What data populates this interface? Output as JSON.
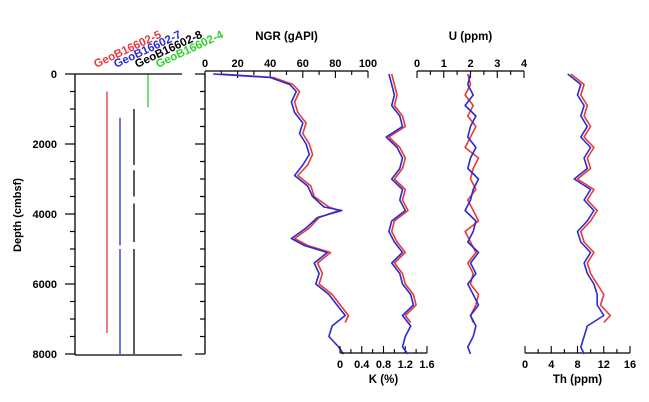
{
  "chart_data": {
    "type": "line",
    "depth_axis": {
      "label": "Depth (cmbsf)",
      "range": [
        0,
        8000
      ],
      "ticks": [
        "0",
        "2000",
        "4000",
        "6000",
        "8000"
      ],
      "direction": "down"
    },
    "holes": [
      {
        "name": "GeoB16602-5",
        "color": "#e8383a",
        "segments": [
          [
            500,
            7400
          ]
        ]
      },
      {
        "name": "GeoB16602-7",
        "color": "#2b2bd0",
        "segments": [
          [
            1250,
            4900
          ],
          [
            5000,
            8000
          ]
        ]
      },
      {
        "name": "GeoB16602-8",
        "color": "#000000",
        "segments": [
          [
            1000,
            2600
          ],
          [
            2750,
            3500
          ],
          [
            3700,
            4800
          ],
          [
            5000,
            8000
          ]
        ]
      },
      {
        "name": "GeoB16602-4",
        "color": "#2ed12e",
        "segments": [
          [
            0,
            950
          ]
        ]
      }
    ],
    "panels": [
      {
        "id": "ngr",
        "label": "NGR (gAPI)",
        "axis_position": "top",
        "xlim": [
          0,
          100
        ],
        "ticks": [
          "0",
          "20",
          "40",
          "60",
          "80",
          "100"
        ],
        "series": [
          {
            "color": "#e8383a",
            "depth": [
              0,
              100,
              300,
              500,
              800,
              1100,
              1400,
              1700,
              2000,
              2300,
              2600,
              2900,
              3200,
              3500,
              3800,
              3900,
              4100,
              4400,
              4700,
              4900,
              5100,
              5400,
              5700,
              6000,
              6300,
              6600,
              6900,
              7100
            ],
            "values": [
              10,
              42,
              54,
              58,
              55,
              57,
              62,
              60,
              64,
              66,
              63,
              57,
              65,
              67,
              76,
              82,
              70,
              64,
              55,
              63,
              77,
              69,
              72,
              70,
              78,
              83,
              88,
              86
            ]
          },
          {
            "color": "#2b2bd0",
            "depth": [
              0,
              100,
              300,
              500,
              800,
              1100,
              1400,
              1700,
              2000,
              2300,
              2600,
              2900,
              3200,
              3500,
              3800,
              3900,
              4100,
              4400,
              4700,
              4900,
              5100,
              5400,
              5700,
              6000,
              6300,
              6600,
              6900,
              7200,
              7500,
              7800,
              8000
            ],
            "values": [
              5,
              40,
              52,
              56,
              53,
              55,
              60,
              58,
              62,
              64,
              60,
              55,
              63,
              66,
              73,
              84,
              69,
              62,
              53,
              61,
              75,
              67,
              70,
              68,
              76,
              81,
              86,
              78,
              76,
              82,
              85
            ]
          }
        ]
      },
      {
        "id": "k",
        "label": "K (%)",
        "axis_position": "bottom",
        "xlim": [
          0,
          1.6
        ],
        "ticks": [
          "0",
          "0.4",
          "0.8",
          "1.2",
          "1.6"
        ],
        "series": [
          {
            "color": "#e8383a",
            "depth": [
              0,
              300,
              600,
              900,
              1200,
              1500,
              1800,
              2100,
              2400,
              2700,
              3000,
              3300,
              3600,
              3900,
              4200,
              4500,
              4800,
              5100,
              5400,
              5700,
              6000,
              6300,
              6600,
              6900,
              7100
            ],
            "values": [
              0.95,
              1.0,
              1.05,
              1.0,
              1.15,
              1.2,
              0.9,
              1.1,
              1.2,
              1.15,
              1.0,
              1.2,
              1.15,
              1.25,
              1.0,
              0.95,
              1.05,
              1.2,
              1.0,
              1.15,
              1.2,
              1.35,
              1.4,
              1.2,
              1.3
            ]
          },
          {
            "color": "#2b2bd0",
            "depth": [
              0,
              300,
              600,
              900,
              1200,
              1500,
              1800,
              2100,
              2400,
              2700,
              3000,
              3300,
              3600,
              3900,
              4200,
              4500,
              4800,
              5100,
              5400,
              5700,
              6000,
              6300,
              6600,
              6900,
              7200,
              7500,
              7800,
              8000
            ],
            "values": [
              0.9,
              0.95,
              1.0,
              0.95,
              1.1,
              1.15,
              0.85,
              1.05,
              1.15,
              1.1,
              0.95,
              1.15,
              1.1,
              1.2,
              0.95,
              0.9,
              1.0,
              1.15,
              0.95,
              1.1,
              1.15,
              1.3,
              1.35,
              1.15,
              1.3,
              1.2,
              1.15,
              1.25
            ]
          }
        ]
      },
      {
        "id": "u",
        "label": "U (ppm)",
        "axis_position": "top",
        "xlim": [
          0,
          4
        ],
        "ticks": [
          "0",
          "1",
          "2",
          "3",
          "4"
        ],
        "series": [
          {
            "color": "#e8383a",
            "depth": [
              0,
              300,
              600,
              900,
              1200,
              1500,
              1800,
              2100,
              2400,
              2700,
              3000,
              3300,
              3600,
              3900,
              4200,
              4500,
              4800,
              5100,
              5400,
              5700,
              6000,
              6300,
              6600,
              6900,
              7100
            ],
            "values": [
              1.9,
              2.0,
              1.8,
              2.1,
              1.9,
              2.2,
              2.0,
              1.8,
              2.3,
              2.1,
              2.0,
              2.2,
              1.9,
              2.1,
              2.3,
              1.8,
              2.0,
              2.2,
              1.9,
              2.1,
              2.0,
              2.3,
              2.2,
              2.0,
              2.1
            ]
          },
          {
            "color": "#2b2bd0",
            "depth": [
              0,
              300,
              600,
              900,
              1200,
              1500,
              1800,
              2100,
              2400,
              2700,
              3000,
              3300,
              3600,
              3900,
              4200,
              4500,
              4800,
              5100,
              5400,
              5700,
              6000,
              6300,
              6600,
              6900,
              7200,
              7500,
              7800,
              8000
            ],
            "values": [
              2.0,
              1.9,
              2.1,
              1.8,
              2.2,
              2.0,
              1.9,
              2.2,
              2.0,
              1.9,
              2.3,
              2.1,
              2.0,
              1.8,
              2.2,
              2.1,
              1.9,
              2.3,
              2.0,
              2.2,
              1.9,
              2.1,
              2.3,
              2.0,
              2.2,
              2.1,
              1.9,
              2.0
            ]
          }
        ]
      },
      {
        "id": "th",
        "label": "Th (ppm)",
        "axis_position": "bottom",
        "xlim": [
          0,
          16
        ],
        "ticks": [
          "0",
          "4",
          "8",
          "12",
          "16"
        ],
        "series": [
          {
            "color": "#e8383a",
            "depth": [
              0,
              300,
              600,
              900,
              1200,
              1500,
              1800,
              2100,
              2400,
              2700,
              3000,
              3300,
              3600,
              3900,
              4200,
              4500,
              4800,
              5100,
              5400,
              5700,
              6000,
              6300,
              6600,
              6900,
              7100
            ],
            "values": [
              7.0,
              9.0,
              8.5,
              9.5,
              9.0,
              10.0,
              9.0,
              10.5,
              9.5,
              10.0,
              8.0,
              10.5,
              9.5,
              11.0,
              10.0,
              8.5,
              9.0,
              10.5,
              9.5,
              10.0,
              11.0,
              12.0,
              11.5,
              13.0,
              12.0
            ]
          },
          {
            "color": "#2b2bd0",
            "depth": [
              0,
              300,
              600,
              900,
              1200,
              1500,
              1800,
              2100,
              2400,
              2700,
              3000,
              3300,
              3600,
              3900,
              4200,
              4500,
              4800,
              5100,
              5400,
              5700,
              6000,
              6300,
              6600,
              6900,
              7200,
              7500,
              7800,
              8000
            ],
            "values": [
              6.5,
              8.5,
              8.0,
              9.0,
              8.5,
              9.5,
              8.5,
              10.0,
              9.0,
              9.5,
              7.5,
              10.0,
              9.0,
              10.5,
              9.5,
              8.0,
              8.5,
              10.0,
              9.0,
              9.5,
              10.5,
              11.0,
              11.0,
              12.0,
              9.5,
              9.0,
              8.5,
              9.0
            ]
          }
        ]
      }
    ]
  }
}
